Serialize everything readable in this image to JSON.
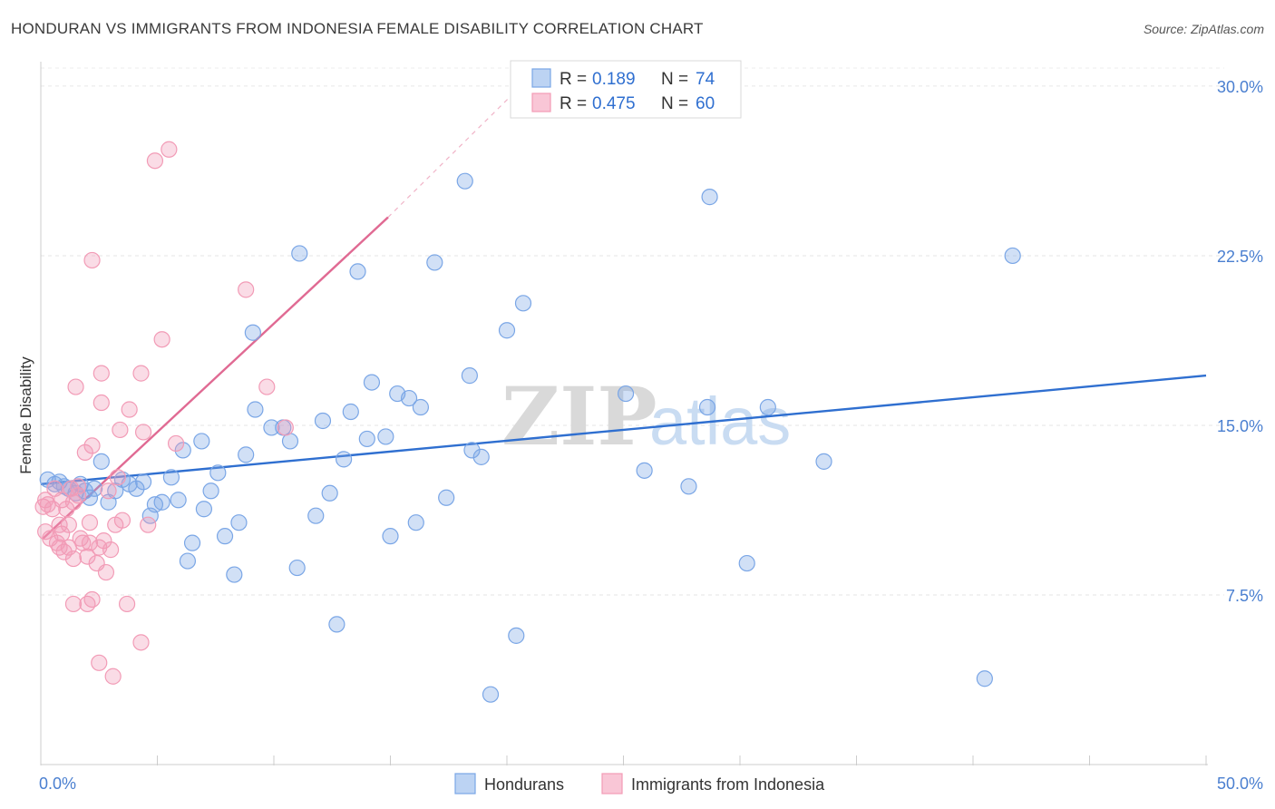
{
  "header": {
    "title": "HONDURAN VS IMMIGRANTS FROM INDONESIA FEMALE DISABILITY CORRELATION CHART",
    "source": "Source: ZipAtlas.com"
  },
  "watermark": {
    "zip": "ZIP",
    "atlas": "atlas"
  },
  "legend_box": {
    "rows": [
      {
        "r_label": "R =",
        "r_value": "0.189",
        "n_label": "N =",
        "n_value": "74"
      },
      {
        "r_label": "R =",
        "r_value": "0.475",
        "n_label": "N =",
        "n_value": "60"
      }
    ]
  },
  "chart_data": {
    "type": "scatter",
    "title": "HONDURAN VS IMMIGRANTS FROM INDONESIA FEMALE DISABILITY CORRELATION CHART",
    "xlabel": "",
    "ylabel": "Female Disability",
    "xlim": [
      0,
      50
    ],
    "ylim": [
      0,
      31
    ],
    "x_tick_labels": [
      "0.0%",
      "50.0%"
    ],
    "y_ticks": [
      7.5,
      15.0,
      22.5,
      30.0
    ],
    "y_tick_labels": [
      "7.5%",
      "15.0%",
      "22.5%",
      "30.0%"
    ],
    "grid": true,
    "legend_position": "top-center",
    "colors": {
      "honduran": "#7aa6e6",
      "indonesia": "#f29bb6",
      "honduran_line": "#2f6fd0",
      "indonesia_line": "#e06a93"
    },
    "series": [
      {
        "name": "Hondurans",
        "trend": {
          "x": [
            0,
            50
          ],
          "y": [
            12.4,
            17.2
          ]
        },
        "points": [
          [
            0.3,
            12.6
          ],
          [
            0.6,
            12.4
          ],
          [
            0.8,
            12.5
          ],
          [
            1.0,
            12.3
          ],
          [
            1.2,
            12.2
          ],
          [
            1.5,
            12.0
          ],
          [
            1.7,
            12.4
          ],
          [
            1.9,
            12.1
          ],
          [
            2.1,
            11.8
          ],
          [
            2.3,
            12.2
          ],
          [
            2.6,
            13.4
          ],
          [
            2.9,
            11.6
          ],
          [
            3.2,
            12.1
          ],
          [
            3.5,
            12.6
          ],
          [
            3.8,
            12.4
          ],
          [
            4.1,
            12.2
          ],
          [
            4.4,
            12.5
          ],
          [
            4.7,
            11.0
          ],
          [
            4.9,
            11.5
          ],
          [
            5.2,
            11.6
          ],
          [
            5.6,
            12.7
          ],
          [
            5.9,
            11.7
          ],
          [
            6.1,
            13.9
          ],
          [
            6.3,
            9.0
          ],
          [
            6.5,
            9.8
          ],
          [
            6.9,
            14.3
          ],
          [
            7.0,
            11.3
          ],
          [
            7.3,
            12.1
          ],
          [
            7.6,
            12.9
          ],
          [
            7.9,
            10.1
          ],
          [
            8.3,
            8.4
          ],
          [
            8.5,
            10.7
          ],
          [
            8.8,
            13.7
          ],
          [
            9.1,
            19.1
          ],
          [
            9.2,
            15.7
          ],
          [
            9.9,
            14.9
          ],
          [
            10.4,
            14.9
          ],
          [
            10.7,
            14.3
          ],
          [
            11.0,
            8.7
          ],
          [
            11.1,
            22.6
          ],
          [
            11.8,
            11.0
          ],
          [
            12.1,
            15.2
          ],
          [
            12.4,
            12.0
          ],
          [
            12.7,
            6.2
          ],
          [
            13.0,
            13.5
          ],
          [
            13.3,
            15.6
          ],
          [
            13.6,
            21.8
          ],
          [
            14.0,
            14.4
          ],
          [
            14.2,
            16.9
          ],
          [
            14.8,
            14.5
          ],
          [
            15.0,
            10.1
          ],
          [
            15.3,
            16.4
          ],
          [
            15.8,
            16.2
          ],
          [
            16.1,
            10.7
          ],
          [
            16.3,
            15.8
          ],
          [
            16.9,
            22.2
          ],
          [
            17.4,
            11.8
          ],
          [
            18.2,
            25.8
          ],
          [
            18.4,
            17.2
          ],
          [
            18.5,
            13.9
          ],
          [
            18.9,
            13.6
          ],
          [
            19.3,
            3.1
          ],
          [
            20.0,
            19.2
          ],
          [
            20.4,
            5.7
          ],
          [
            20.7,
            20.4
          ],
          [
            25.1,
            16.4
          ],
          [
            25.9,
            13.0
          ],
          [
            27.8,
            12.3
          ],
          [
            28.6,
            15.8
          ],
          [
            28.7,
            25.1
          ],
          [
            30.3,
            8.9
          ],
          [
            31.2,
            15.8
          ],
          [
            33.6,
            13.4
          ],
          [
            40.5,
            3.8
          ],
          [
            41.7,
            22.5
          ]
        ]
      },
      {
        "name": "Immigrants from Indonesia",
        "trend": {
          "x": [
            0.1,
            14.9
          ],
          "y": [
            10.0,
            24.2
          ]
        },
        "trend_extension": {
          "x": [
            14.9,
            20.6
          ],
          "y": [
            24.2,
            30.0
          ]
        },
        "points": [
          [
            0.1,
            11.4
          ],
          [
            0.2,
            11.7
          ],
          [
            0.2,
            10.3
          ],
          [
            0.3,
            11.5
          ],
          [
            0.4,
            10.0
          ],
          [
            0.5,
            11.3
          ],
          [
            0.6,
            12.2
          ],
          [
            0.7,
            9.8
          ],
          [
            0.8,
            10.6
          ],
          [
            0.8,
            9.6
          ],
          [
            0.9,
            11.7
          ],
          [
            0.9,
            10.2
          ],
          [
            1.0,
            9.4
          ],
          [
            1.1,
            11.3
          ],
          [
            1.2,
            9.6
          ],
          [
            1.2,
            10.6
          ],
          [
            1.3,
            12.2
          ],
          [
            1.4,
            11.6
          ],
          [
            1.4,
            9.1
          ],
          [
            1.4,
            7.1
          ],
          [
            1.5,
            16.7
          ],
          [
            1.6,
            11.9
          ],
          [
            1.6,
            12.3
          ],
          [
            1.7,
            10.0
          ],
          [
            1.8,
            9.8
          ],
          [
            1.9,
            13.8
          ],
          [
            2.0,
            7.1
          ],
          [
            2.0,
            9.2
          ],
          [
            2.1,
            9.8
          ],
          [
            2.1,
            10.7
          ],
          [
            2.2,
            14.1
          ],
          [
            2.2,
            22.3
          ],
          [
            2.2,
            7.3
          ],
          [
            2.4,
            8.9
          ],
          [
            2.5,
            4.5
          ],
          [
            2.5,
            9.6
          ],
          [
            2.6,
            16.0
          ],
          [
            2.6,
            17.3
          ],
          [
            2.7,
            9.9
          ],
          [
            2.8,
            8.5
          ],
          [
            2.9,
            12.1
          ],
          [
            3.0,
            9.5
          ],
          [
            3.1,
            3.9
          ],
          [
            3.2,
            10.6
          ],
          [
            3.3,
            12.7
          ],
          [
            3.4,
            14.8
          ],
          [
            3.5,
            10.8
          ],
          [
            3.7,
            7.1
          ],
          [
            3.8,
            15.7
          ],
          [
            4.3,
            5.4
          ],
          [
            4.3,
            17.3
          ],
          [
            4.4,
            14.7
          ],
          [
            4.6,
            10.6
          ],
          [
            4.9,
            26.7
          ],
          [
            5.2,
            18.8
          ],
          [
            5.5,
            27.2
          ],
          [
            5.8,
            14.2
          ],
          [
            8.8,
            21.0
          ],
          [
            9.7,
            16.7
          ],
          [
            10.5,
            14.9
          ]
        ]
      }
    ]
  },
  "bottom_legend": {
    "items": [
      "Hondurans",
      "Immigrants from Indonesia"
    ]
  }
}
